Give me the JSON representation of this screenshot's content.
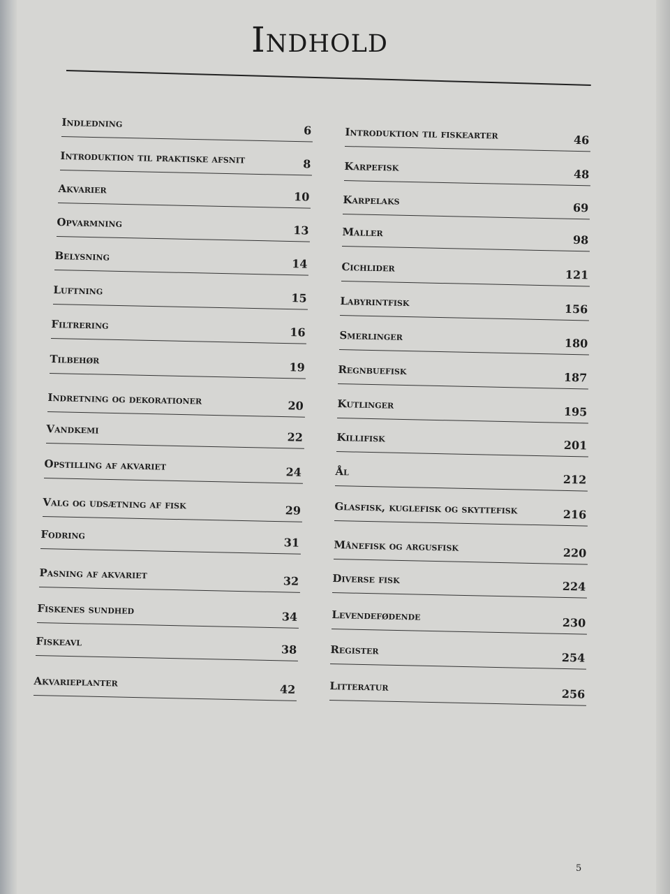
{
  "page": {
    "title": "Indhold",
    "page_number": "5"
  },
  "left_column": [
    {
      "label": "Indledning",
      "page": "6"
    },
    {
      "label": "Introduktion til praktiske afsnit",
      "page": "8"
    },
    {
      "label": "Akvarier",
      "page": "10"
    },
    {
      "label": "Opvarmning",
      "page": "13"
    },
    {
      "label": "Belysning",
      "page": "14"
    },
    {
      "label": "Luftning",
      "page": "15"
    },
    {
      "label": "Filtrering",
      "page": "16"
    },
    {
      "label": "Tilbehør",
      "page": "19"
    },
    {
      "label": "Indretning og dekorationer",
      "page": "20"
    },
    {
      "label": "Vandkemi",
      "page": "22"
    },
    {
      "label": "Opstilling af akvariet",
      "page": "24"
    },
    {
      "label": "Valg og udsætning af fisk",
      "page": "29"
    },
    {
      "label": "Fodring",
      "page": "31"
    },
    {
      "label": "Pasning af akvariet",
      "page": "32"
    },
    {
      "label": "Fiskenes sundhed",
      "page": "34"
    },
    {
      "label": "Fiskeavl",
      "page": "38"
    },
    {
      "label": "Akvarieplanter",
      "page": "42"
    }
  ],
  "right_column": [
    {
      "label": "Introduktion til fiskearter",
      "page": "46"
    },
    {
      "label": "Karpefisk",
      "page": "48"
    },
    {
      "label": "Karpelaks",
      "page": "69"
    },
    {
      "label": "Maller",
      "page": "98"
    },
    {
      "label": "Cichlider",
      "page": "121"
    },
    {
      "label": "Labyrintfisk",
      "page": "156"
    },
    {
      "label": "Smerlinger",
      "page": "180"
    },
    {
      "label": "Regnbuefisk",
      "page": "187"
    },
    {
      "label": "Kutlinger",
      "page": "195"
    },
    {
      "label": "Killifisk",
      "page": "201"
    },
    {
      "label": "Ål",
      "page": "212"
    },
    {
      "label": "Glasfisk, kuglefisk og skyttefisk",
      "page": "216"
    },
    {
      "label": "Månefisk og argusfisk",
      "page": "220"
    },
    {
      "label": "Diverse fisk",
      "page": "224"
    },
    {
      "label": "Levendefødende",
      "page": "230"
    },
    {
      "label": "Register",
      "page": "254"
    },
    {
      "label": "Litteratur",
      "page": "256"
    }
  ]
}
